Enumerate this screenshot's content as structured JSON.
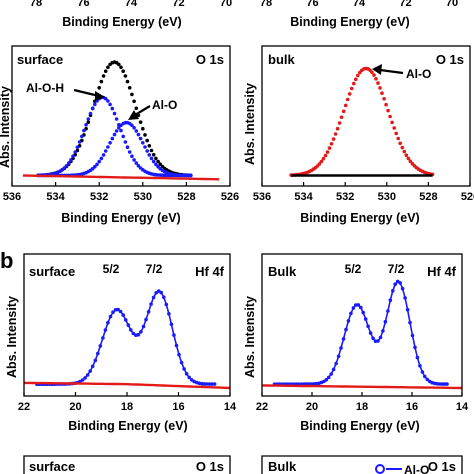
{
  "figure": {
    "letter": "b"
  },
  "chart_data": [
    {
      "id": "top-left-partial",
      "type": "line",
      "xlabel": "Binding Energy (eV)",
      "x_ticks": [
        78,
        76,
        74,
        72,
        70
      ],
      "xlim": [
        78,
        70
      ]
    },
    {
      "id": "top-right-partial",
      "type": "line",
      "xlabel": "Binding Energy (eV)",
      "x_ticks": [
        78,
        76,
        74,
        72,
        70
      ],
      "xlim": [
        78,
        70
      ]
    },
    {
      "id": "o1s-surface",
      "type": "line",
      "panel_label": "surface",
      "core_level": "O 1s",
      "xlabel": "Binding Energy (eV)",
      "ylabel": "Abs. Intensity",
      "xlim": [
        536,
        526
      ],
      "ylim": [
        0,
        1.0
      ],
      "x_ticks": [
        536,
        534,
        532,
        530,
        528,
        526
      ],
      "annotations": [
        "Al-O-H",
        "Al-O"
      ],
      "series": [
        {
          "color": "#000000",
          "style": "dots",
          "peak_center": 531.3,
          "peak_height": 0.9,
          "fwhm": 2.3,
          "x_range": [
            534.8,
            527.8
          ]
        },
        {
          "color": "#1a1aff",
          "style": "dots",
          "peak_center": 531.85,
          "peak_height": 0.62,
          "fwhm": 1.9,
          "x_range": [
            534.8,
            527.8
          ]
        },
        {
          "color": "#1a1aff",
          "style": "dots",
          "peak_center": 530.75,
          "peak_height": 0.42,
          "fwhm": 1.8,
          "x_range": [
            534.8,
            527.8
          ]
        },
        {
          "color": "#e31a1a",
          "style": "line",
          "baseline": [
            0.02,
            -0.01
          ],
          "x_range": [
            535.5,
            526.5
          ]
        }
      ]
    },
    {
      "id": "o1s-bulk",
      "type": "line",
      "panel_label": "bulk",
      "core_level": "O 1s",
      "xlabel": "Binding Energy (eV)",
      "ylabel": "Abs. Intensity",
      "xlim": [
        536,
        526
      ],
      "ylim": [
        0,
        1.0
      ],
      "x_ticks": [
        536,
        534,
        532,
        530,
        528,
        526
      ],
      "annotations": [
        "Al-O"
      ],
      "series": [
        {
          "color": "#e31a1a",
          "style": "dots",
          "peak_center": 531.0,
          "peak_height": 0.85,
          "fwhm": 2.5,
          "x_range": [
            534.6,
            527.8
          ]
        },
        {
          "color": "#000000",
          "style": "line",
          "baseline": [
            0.02,
            0.02
          ],
          "x_range": [
            534.6,
            527.8
          ]
        }
      ]
    },
    {
      "id": "hf4f-surface",
      "type": "line",
      "panel_label": "surface",
      "core_level": "Hf 4f",
      "peak_labels": [
        "5/2",
        "7/2"
      ],
      "xlabel": "Binding Energy (eV)",
      "ylabel": "Abs. Intensity",
      "xlim": [
        22,
        14
      ],
      "ylim": [
        0,
        1.0
      ],
      "x_ticks": [
        22,
        20,
        18,
        16,
        14
      ],
      "series": [
        {
          "color": "#1a1aff",
          "style": "dots-line",
          "peaks": [
            {
              "center": 18.4,
              "height": 0.58,
              "fwhm": 1.3
            },
            {
              "center": 16.75,
              "height": 0.72,
              "fwhm": 1.2
            }
          ],
          "x_range": [
            21.5,
            14.6
          ]
        },
        {
          "color": "#e31a1a",
          "style": "line",
          "baseline": [
            0.04,
            0.03,
            0.0
          ],
          "x_range": [
            22,
            14
          ]
        }
      ]
    },
    {
      "id": "hf4f-bulk",
      "type": "line",
      "panel_label": "Bulk",
      "core_level": "Hf 4f",
      "peak_labels": [
        "5/2",
        "7/2"
      ],
      "xlabel": "Binding Energy (eV)",
      "ylabel": "Abs. Intensity",
      "xlim": [
        22,
        14
      ],
      "ylim": [
        0,
        1.0
      ],
      "x_ticks": [
        22,
        20,
        18,
        16,
        14
      ],
      "series": [
        {
          "color": "#1a1aff",
          "style": "dots-line",
          "peaks": [
            {
              "center": 18.2,
              "height": 0.62,
              "fwhm": 1.2
            },
            {
              "center": 16.55,
              "height": 0.8,
              "fwhm": 1.1
            }
          ],
          "x_range": [
            21.5,
            14.6
          ]
        },
        {
          "color": "#e31a1a",
          "style": "line",
          "baseline": [
            0.02,
            0.01,
            0.0
          ],
          "x_range": [
            22,
            14
          ]
        }
      ]
    },
    {
      "id": "bottom-left-partial",
      "type": "line",
      "panel_label": "surface",
      "core_level": "O 1s"
    },
    {
      "id": "bottom-right-partial",
      "type": "line",
      "panel_label": "Bulk",
      "core_level": "O 1s",
      "legend_partial": "Al-O"
    }
  ]
}
